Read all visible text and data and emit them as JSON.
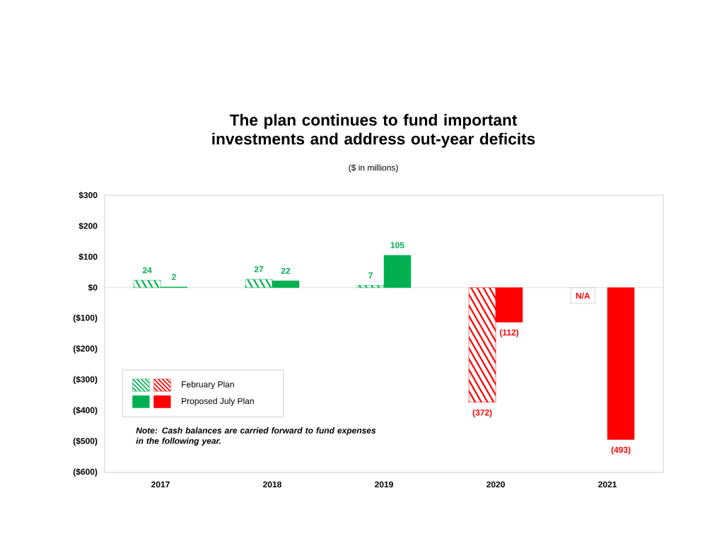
{
  "chart_data": {
    "type": "bar",
    "title": "The plan continues to fund important investments and address out-year deficits",
    "subtitle": "($ in millions)",
    "categories": [
      "2017",
      "2018",
      "2019",
      "2020",
      "2021"
    ],
    "series": [
      {
        "name": "February Plan",
        "values": [
          24,
          27,
          7,
          -372,
          null
        ],
        "colors": [
          "#00b050",
          "#00b050",
          "#00b050",
          "#ff0000",
          "#ff0000"
        ],
        "value_labels": [
          "24",
          "27",
          "7",
          "(372)",
          "N/A"
        ]
      },
      {
        "name": "Proposed July Plan",
        "values": [
          2,
          22,
          105,
          -112,
          -493
        ],
        "colors": [
          "#00b050",
          "#00b050",
          "#00b050",
          "#ff0000",
          "#ff0000"
        ],
        "value_labels": [
          "2",
          "22",
          "105",
          "(112)",
          "(493)"
        ]
      }
    ],
    "ylim": [
      -600,
      300
    ],
    "yticks": [
      {
        "value": 300,
        "label": "$300"
      },
      {
        "value": 200,
        "label": "$200"
      },
      {
        "value": 100,
        "label": "$100"
      },
      {
        "value": 0,
        "label": "$0"
      },
      {
        "value": -100,
        "label": "($100)"
      },
      {
        "value": -200,
        "label": "($200)"
      },
      {
        "value": -300,
        "label": "($300)"
      },
      {
        "value": -400,
        "label": "($400)"
      },
      {
        "value": -500,
        "label": "($500)"
      },
      {
        "value": -600,
        "label": "($600)"
      }
    ],
    "grid": false,
    "ref_lines": [
      {
        "axis": "y",
        "value": 0,
        "color": "#c0c0c0"
      }
    ],
    "legend": "bottom left",
    "annotations": [
      "Note:  Cash balances are carried forward to fund expenses in the following year."
    ]
  }
}
